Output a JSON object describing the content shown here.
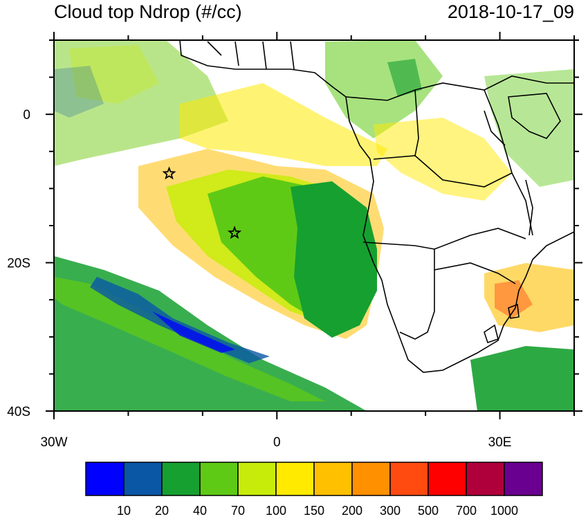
{
  "map": {
    "title": "Cloud top Ndrop (#/cc)",
    "datetime": "2018-10-17_09",
    "lat_labels": [
      {
        "text": "0",
        "lat": 0
      },
      {
        "text": "20S",
        "lat": -20
      },
      {
        "text": "40S",
        "lat": -40
      }
    ],
    "lon_labels": [
      {
        "text": "30W",
        "lon": -30
      },
      {
        "text": "0",
        "lon": 0
      },
      {
        "text": "30E",
        "lon": 30
      }
    ],
    "extent": {
      "lon_min": -30,
      "lon_max": 40,
      "lat_min": -40,
      "lat_max": 10
    },
    "markers": [
      {
        "name": "star-marker-1",
        "lon": -14.5,
        "lat": -8
      },
      {
        "name": "star-marker-2",
        "lon": -5.7,
        "lat": -16
      }
    ],
    "colorbar": {
      "colors": [
        "#0000ff",
        "#0a57a6",
        "#16a030",
        "#5fca16",
        "#c8ec0a",
        "#ffea00",
        "#ffc000",
        "#ff9000",
        "#ff4a10",
        "#ff0000",
        "#b0003c",
        "#6a0090"
      ],
      "labels": [
        "10",
        "20",
        "40",
        "70",
        "100",
        "150",
        "200",
        "300",
        "500",
        "700",
        "1000"
      ]
    }
  }
}
